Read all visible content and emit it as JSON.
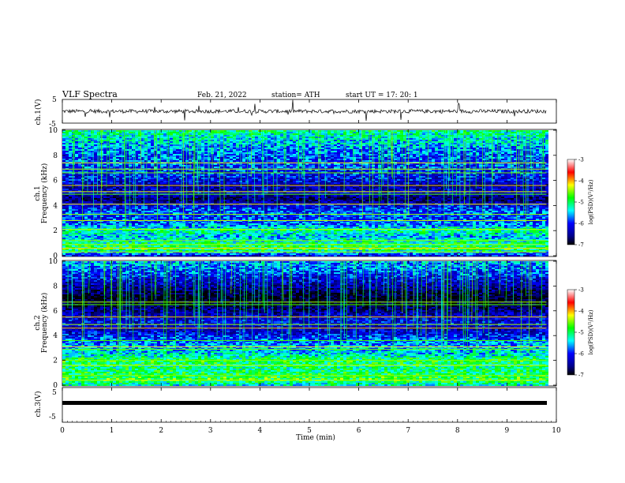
{
  "header": {
    "title": "VLF  Spectra",
    "date": "Feb. 21, 2022",
    "station": "station= ATH",
    "start": "start  UT  =    17: 20: 1"
  },
  "chart_data": [
    {
      "type": "line",
      "panel": "ch1-waveform",
      "ylabel": "ch.1(V)",
      "ylim": [
        -5,
        5
      ],
      "yticks": [
        5,
        -5
      ],
      "x_range": [
        0,
        9.8
      ],
      "baseline": 0,
      "noise": "spiky"
    },
    {
      "type": "heatmap",
      "panel": "ch1-spectrogram",
      "ylabel": "ch.1\nFrequency  (kHz)",
      "ylim": [
        0,
        10
      ],
      "yticks": [
        0,
        2,
        4,
        6,
        8,
        10
      ],
      "x_range": [
        0,
        9.8
      ],
      "value": "log(PSD)",
      "colorbar": {
        "label": "log(PSD)(V²/Hz)",
        "min": -7,
        "max": -3,
        "ticks": [
          "-3",
          "-4",
          "-5",
          "-6",
          "-7"
        ]
      },
      "profile": [
        {
          "f": 0.0,
          "v": -6.0
        },
        {
          "f": 0.5,
          "v": -4.8
        },
        {
          "f": 1.0,
          "v": -5.0
        },
        {
          "f": 1.5,
          "v": -5.4
        },
        {
          "f": 2.0,
          "v": -5.0
        },
        {
          "f": 2.5,
          "v": -5.6
        },
        {
          "f": 3.0,
          "v": -5.8
        },
        {
          "f": 3.5,
          "v": -5.7
        },
        {
          "f": 4.0,
          "v": -6.0
        },
        {
          "f": 4.5,
          "v": -6.6
        },
        {
          "f": 5.0,
          "v": -6.1
        },
        {
          "f": 5.5,
          "v": -6.3
        },
        {
          "f": 6.0,
          "v": -6.0
        },
        {
          "f": 6.5,
          "v": -5.9
        },
        {
          "f": 7.0,
          "v": -5.8
        },
        {
          "f": 8.0,
          "v": -5.7
        },
        {
          "f": 9.0,
          "v": -5.4
        },
        {
          "f": 10.0,
          "v": -5.0
        }
      ],
      "lines_khz": [
        0.3,
        0.6,
        0.9,
        1.2,
        2.1,
        2.8,
        3.3,
        4.1,
        4.9,
        5.1,
        5.6,
        6.6,
        6.9,
        7.4
      ]
    },
    {
      "type": "heatmap",
      "panel": "ch2-spectrogram",
      "ylabel": "ch.2\nFrequency  (kHz)",
      "ylim": [
        0,
        10
      ],
      "yticks": [
        0,
        2,
        4,
        6,
        8,
        10
      ],
      "x_range": [
        0,
        9.8
      ],
      "value": "log(PSD)",
      "colorbar": {
        "label": "log(PSD)(V²/Hz)",
        "min": -7,
        "max": -3,
        "ticks": [
          "-3",
          "-4",
          "-5",
          "-6",
          "-7"
        ]
      },
      "profile": [
        {
          "f": 0.0,
          "v": -5.2
        },
        {
          "f": 0.5,
          "v": -4.7
        },
        {
          "f": 1.0,
          "v": -4.9
        },
        {
          "f": 1.5,
          "v": -5.0
        },
        {
          "f": 2.0,
          "v": -4.8
        },
        {
          "f": 2.5,
          "v": -5.3
        },
        {
          "f": 3.0,
          "v": -5.4
        },
        {
          "f": 3.5,
          "v": -5.6
        },
        {
          "f": 4.0,
          "v": -5.9
        },
        {
          "f": 4.5,
          "v": -6.2
        },
        {
          "f": 5.0,
          "v": -6.0
        },
        {
          "f": 5.5,
          "v": -6.1
        },
        {
          "f": 6.0,
          "v": -6.4
        },
        {
          "f": 6.5,
          "v": -6.8
        },
        {
          "f": 7.0,
          "v": -6.9
        },
        {
          "f": 8.0,
          "v": -6.3
        },
        {
          "f": 9.0,
          "v": -5.8
        },
        {
          "f": 10.0,
          "v": -5.4
        }
      ],
      "lines_khz": [
        0.4,
        0.8,
        1.6,
        2.0,
        2.9,
        3.1,
        3.6,
        4.6,
        4.9,
        5.5,
        6.5,
        6.7
      ]
    },
    {
      "type": "line",
      "panel": "ch3-waveform",
      "ylabel": "ch.3(V)",
      "ylim": [
        -5,
        5
      ],
      "yticks": [
        5,
        -5
      ],
      "x_range": [
        0,
        9.8
      ],
      "baseline": 0,
      "noise": "thick"
    }
  ],
  "xaxis": {
    "label": "Time  (min)",
    "ticks": [
      "0",
      "1",
      "2",
      "3",
      "4",
      "5",
      "6",
      "7",
      "8",
      "9",
      "10"
    ],
    "min": 0,
    "max": 10
  },
  "colors": {
    "frame": "#000000",
    "background": "#ffffff",
    "colormap": [
      "#000000",
      "#00008b",
      "#0000ff",
      "#00ffff",
      "#00ff00",
      "#ffff00",
      "#ff0000",
      "#ffffff"
    ]
  }
}
